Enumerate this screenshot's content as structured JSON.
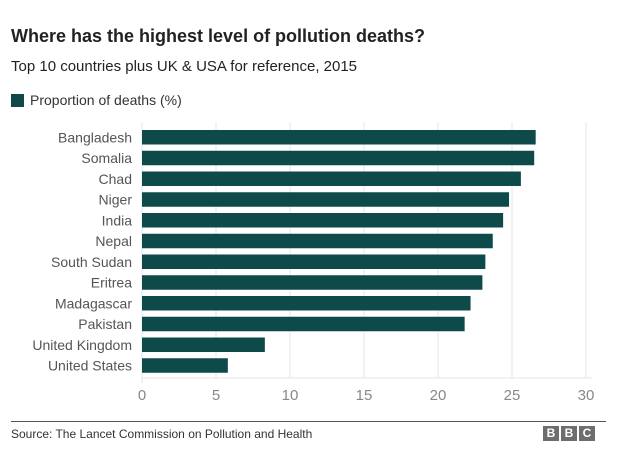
{
  "colors": {
    "bar": "#0e4a4a",
    "grid": "#e6e6e6",
    "tick_text": "#888888",
    "label_text": "#555555"
  },
  "chart_data": {
    "type": "bar",
    "orientation": "horizontal",
    "title": "Where has the highest level of pollution deaths?",
    "subtitle": "Top 10 countries plus UK & USA for reference, 2015",
    "legend": {
      "placement": "top-left",
      "entries": [
        "Proportion of deaths (%)"
      ]
    },
    "categories": [
      "Bangladesh",
      "Somalia",
      "Chad",
      "Niger",
      "India",
      "Nepal",
      "South Sudan",
      "Eritrea",
      "Madagascar",
      "Pakistan",
      "United Kingdom",
      "United States"
    ],
    "series": [
      {
        "name": "Proportion of deaths (%)",
        "values": [
          26.6,
          26.5,
          25.6,
          24.8,
          24.4,
          23.7,
          23.2,
          23.0,
          22.2,
          21.8,
          8.3,
          5.8
        ]
      }
    ],
    "xlabel": "",
    "ylabel": "",
    "xlim": [
      0,
      30
    ],
    "xticks": [
      "0",
      "5",
      "10",
      "15",
      "20",
      "25",
      "30"
    ],
    "grid": true,
    "source": "Source: The Lancet Commission on Pollution and Health"
  },
  "branding": {
    "letters": [
      "B",
      "B",
      "C"
    ]
  }
}
